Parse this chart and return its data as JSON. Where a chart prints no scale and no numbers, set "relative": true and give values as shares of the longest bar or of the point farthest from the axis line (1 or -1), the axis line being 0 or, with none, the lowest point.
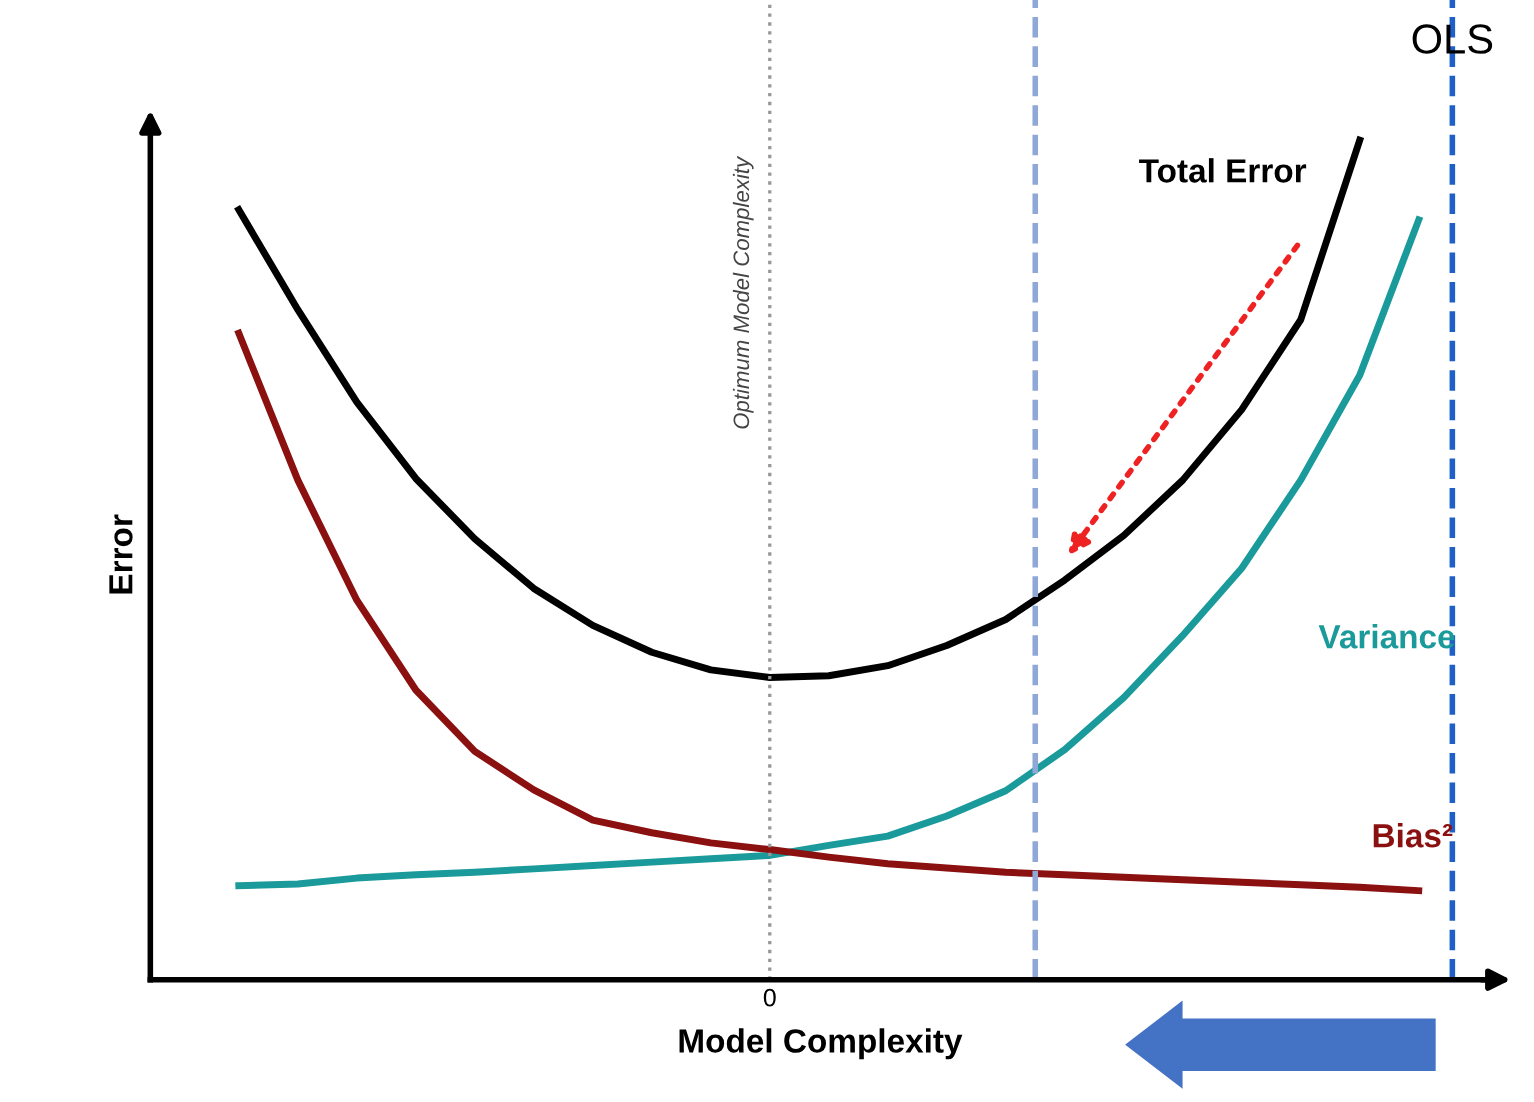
{
  "chart_data": {
    "type": "line",
    "relative": true,
    "xlabel": "Model Complexity",
    "ylabel": "Error",
    "categories": [
      null,
      null,
      null,
      null,
      null,
      null,
      null,
      null,
      null,
      null,
      null,
      null,
      null,
      null,
      null,
      null,
      null,
      null,
      null,
      null,
      null,
      null,
      null
    ],
    "legend": false,
    "grid": false,
    "marker": "none",
    "line_style": "solid",
    "annotations": [
      "0",
      "Optimum Model Complexity",
      "OLS"
    ],
    "series": [
      {
        "name": "Total Error",
        "color": "#000000",
        "values": [
          null,
          0.917,
          0.798,
          0.688,
          0.597,
          0.525,
          0.466,
          0.422,
          0.39,
          0.369,
          0.36,
          0.362,
          0.374,
          0.398,
          0.429,
          0.476,
          0.529,
          0.595,
          0.679,
          0.786,
          1.0,
          null,
          null
        ]
      },
      {
        "name": "Variance",
        "color": "#1a9a9a",
        "values": [
          null,
          0.112,
          0.114,
          0.121,
          0.125,
          0.128,
          0.132,
          0.136,
          0.14,
          0.144,
          0.148,
          0.16,
          0.171,
          0.195,
          0.225,
          0.274,
          0.336,
          0.41,
          0.49,
          0.595,
          0.72,
          0.905,
          null
        ]
      },
      {
        "name": "Bias²",
        "color": "#8b1010",
        "values": [
          null,
          0.77,
          0.595,
          0.452,
          0.345,
          0.272,
          0.226,
          0.19,
          0.175,
          0.163,
          0.155,
          0.146,
          0.138,
          0.133,
          0.128,
          0.125,
          0.122,
          0.119,
          0.116,
          0.113,
          0.11,
          0.106,
          null
        ]
      }
    ]
  }
}
